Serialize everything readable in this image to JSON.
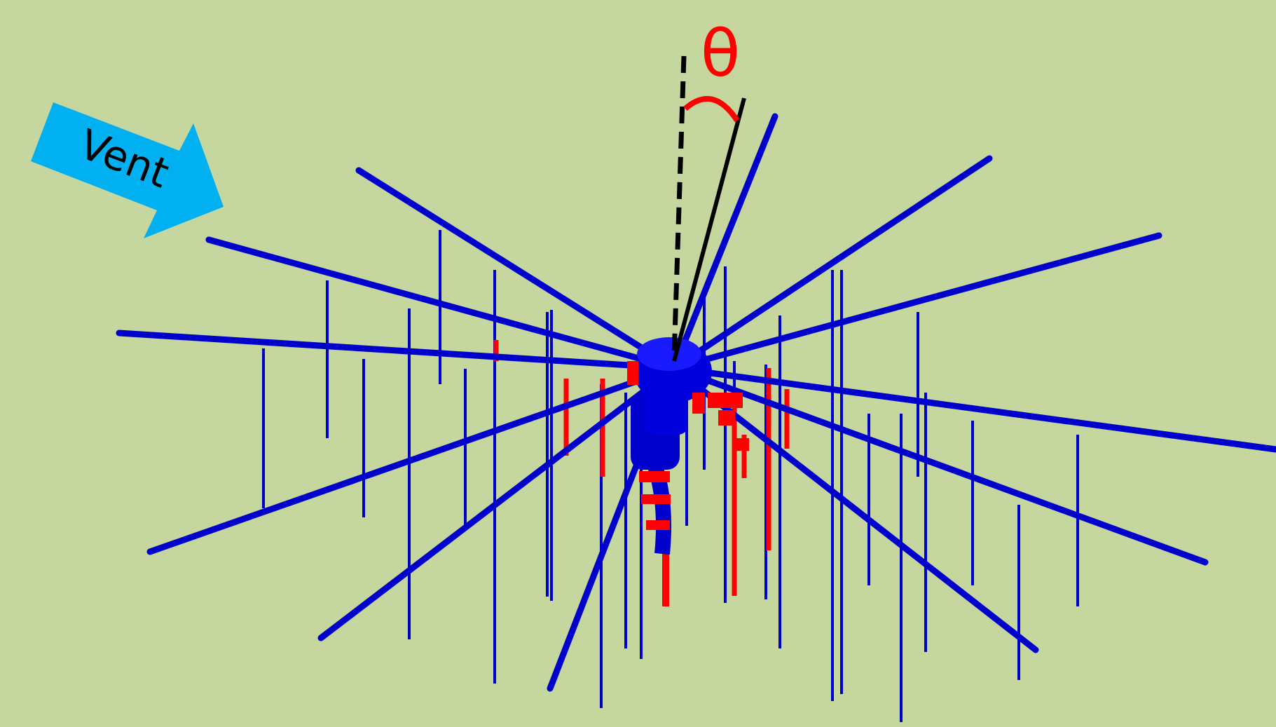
{
  "wind_arrow": {
    "label": "Vent",
    "color": "#00b0f0"
  },
  "angle": {
    "symbol": "θ",
    "color": "#ff0000"
  },
  "colors": {
    "background": "#c5d79e",
    "arm": "#0000cc",
    "highlight": "#ff0000",
    "reference_line": "#000000"
  }
}
